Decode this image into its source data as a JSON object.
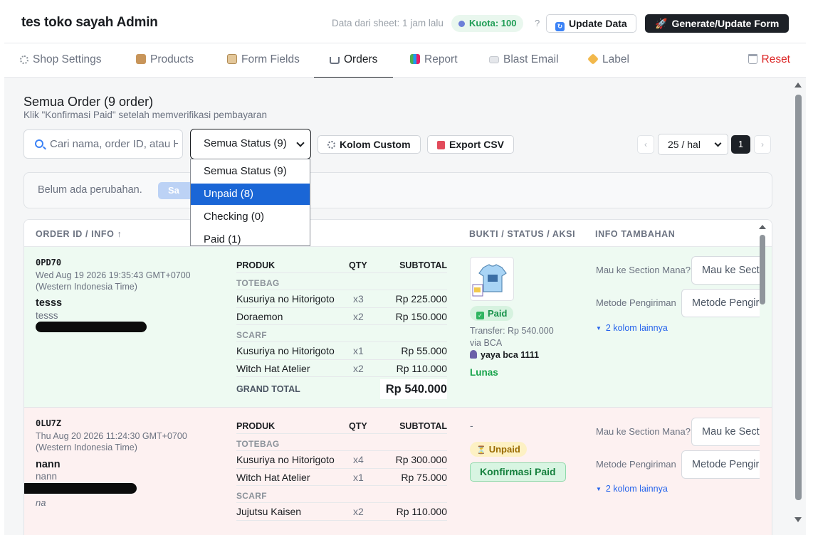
{
  "header": {
    "title": "tes toko sayah Admin",
    "sync_text": "Data dari sheet: 1 jam lalu",
    "quota": "Kuota: 100",
    "help": "?",
    "update_label": "Update Data",
    "generate_label": "Generate/Update Form"
  },
  "tabs": [
    {
      "label": "Shop Settings",
      "icon": "gear-icon"
    },
    {
      "label": "Products",
      "icon": "box-icon"
    },
    {
      "label": "Form Fields",
      "icon": "clipboard-icon"
    },
    {
      "label": "Orders",
      "icon": "cart-icon",
      "active": true
    },
    {
      "label": "Report",
      "icon": "bar-chart-icon"
    },
    {
      "label": "Blast Email",
      "icon": "email-icon"
    },
    {
      "label": "Label",
      "icon": "tag-icon"
    }
  ],
  "reset_label": "Reset",
  "orders": {
    "title": "Semua Order (9 order)",
    "subtitle": "Klik \"Konfirmasi Paid\" setelah memverifikasi pembayaran",
    "search_placeholder": "Cari nama, order ID, atau HP...",
    "status_selected": "Semua Status (9)",
    "status_options": [
      "Semua Status (9)",
      "Unpaid (8)",
      "Checking (0)",
      "Paid (1)"
    ],
    "status_highlighted": "Unpaid (8)",
    "kolom_custom_label": "Kolom Custom",
    "export_label": "Export CSV",
    "prev": "‹",
    "next": "›",
    "per_page": "25 / hal",
    "page": "1",
    "changes_text": "Belum ada perubahan.",
    "save_label": "Sa",
    "columns": {
      "order": "ORDER ID / INFO ↑",
      "bukti": "BUKTI / STATUS / AKSI",
      "info": "INFO TAMBAHAN"
    },
    "product_headers": {
      "produk": "PRODUK",
      "qty": "QTY",
      "subtotal": "SUBTOTAL"
    },
    "rows": [
      {
        "id": "0PD70",
        "date": "Wed Aug 19 2026 19:35:43 GMT+0700 (Western Indonesia Time)",
        "name": "tesss",
        "sub": "tesss",
        "categories": [
          {
            "name": "TOTEBAG",
            "items": [
              {
                "name": "Kusuriya no Hitorigoto",
                "qty": "x3",
                "subtotal": "Rp 225.000"
              },
              {
                "name": "Doraemon",
                "qty": "x2",
                "subtotal": "Rp 150.000"
              }
            ]
          },
          {
            "name": "SCARF",
            "items": [
              {
                "name": "Kusuriya no Hitorigoto",
                "qty": "x1",
                "subtotal": "Rp 55.000"
              },
              {
                "name": "Witch Hat Atelier",
                "qty": "x2",
                "subtotal": "Rp 110.000"
              }
            ]
          }
        ],
        "grand_total_label": "GRAND TOTAL",
        "grand_total": "Rp 540.000",
        "status": "Paid",
        "transfer": "Transfer: Rp 540.000",
        "via": "via BCA",
        "bank": "yaya bca 1111",
        "lunas": "Lunas",
        "info_labels": [
          "Mau ke Section Mana?",
          "Metode Pengiriman"
        ],
        "info_placeholders": [
          "Mau ke Section Mana?",
          "Metode Pengiriman"
        ],
        "more": "2 kolom lainnya"
      },
      {
        "id": "0LU7Z",
        "date": "Thu Aug 20 2026 11:24:30 GMT+0700 (Western Indonesia Time)",
        "name": "nann",
        "sub": "nann",
        "note": "na",
        "categories": [
          {
            "name": "TOTEBAG",
            "items": [
              {
                "name": "Kusuriya no Hitorigoto",
                "qty": "x4",
                "subtotal": "Rp 300.000"
              },
              {
                "name": "Witch Hat Atelier",
                "qty": "x1",
                "subtotal": "Rp 75.000"
              }
            ]
          },
          {
            "name": "SCARF",
            "items": [
              {
                "name": "Jujutsu Kaisen",
                "qty": "x2",
                "subtotal": "Rp 110.000"
              }
            ]
          }
        ],
        "dash": "-",
        "status": "Unpaid",
        "konfirmasi_label": "Konfirmasi Paid",
        "info_labels": [
          "Mau ke Section Mana?",
          "Metode Pengiriman"
        ],
        "info_placeholders": [
          "Mau ke Section Mana?",
          "Metode Pengiriman"
        ],
        "more": "2 kolom lainnya"
      }
    ]
  },
  "colors": {
    "accent": "#1d2127",
    "paid_bg": "#eefaf2",
    "unpaid_bg": "#fdf1f1",
    "link": "#2563eb",
    "danger": "#dc2626"
  }
}
